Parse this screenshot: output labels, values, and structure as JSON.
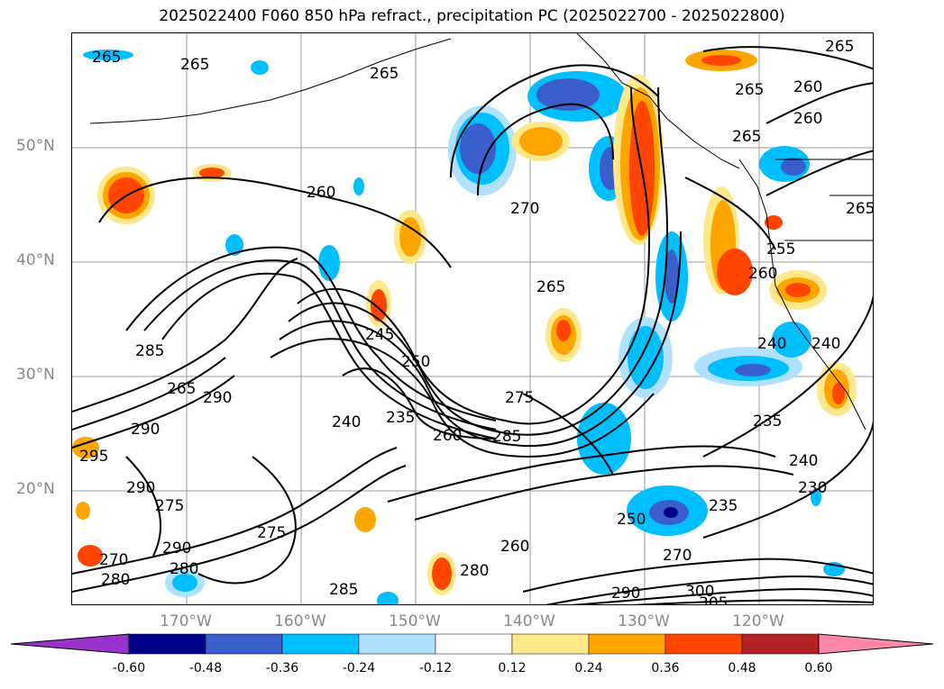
{
  "title": "2025022400 F060 850 hPa refract., precipitation PC (2025022700 - 2025022800)",
  "lat_labels": [
    "50°N",
    "40°N",
    "30°N",
    "20°N"
  ],
  "lon_labels": [
    "170°W",
    "160°W",
    "150°W",
    "140°W",
    "130°W",
    "120°W"
  ],
  "contour_labels": [
    "265",
    "265",
    "265",
    "265",
    "260",
    "265",
    "260",
    "270",
    "260",
    "265",
    "255",
    "260",
    "265",
    "245",
    "250",
    "240",
    "240",
    "235",
    "240",
    "260",
    "275",
    "285",
    "285",
    "265",
    "290",
    "295",
    "290",
    "290",
    "275",
    "275",
    "290",
    "280",
    "270",
    "280",
    "260",
    "280",
    "285",
    "290",
    "300",
    "305",
    "270",
    "250",
    "235",
    "235",
    "240",
    "230",
    "265"
  ],
  "colorbar": {
    "ticks": [
      "-0.60",
      "-0.48",
      "-0.36",
      "-0.24",
      "-0.12",
      "0.12",
      "0.24",
      "0.36",
      "0.48",
      "0.60"
    ],
    "colors": [
      "#9932cc",
      "#00008b",
      "#3a5fcd",
      "#00bfff",
      "#b0e2ff",
      "#ffffff",
      "#ffe88a",
      "#ffa500",
      "#ff4500",
      "#b22222",
      "#ff88aa"
    ]
  }
}
